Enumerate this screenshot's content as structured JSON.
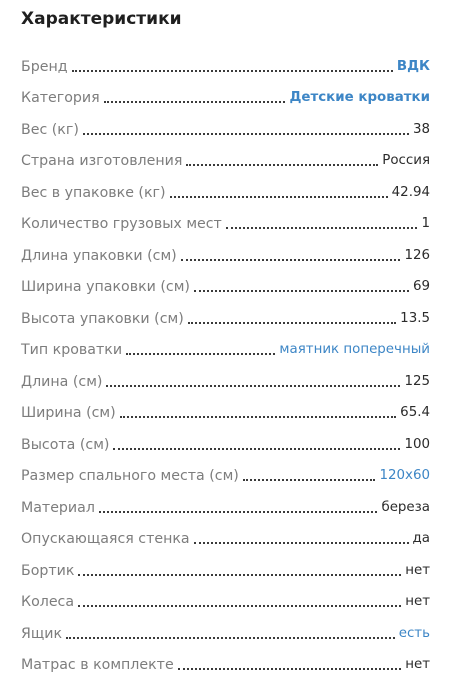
{
  "title": "Характеристики",
  "specs": [
    {
      "label": "Бренд",
      "value": "ВДК",
      "link": true,
      "bold": true
    },
    {
      "label": "Категория",
      "value": "Детские кроватки",
      "link": true,
      "bold": true
    },
    {
      "label": "Вес (кг)",
      "value": "38"
    },
    {
      "label": "Страна изготовления",
      "value": "Россия"
    },
    {
      "label": "Вес в упаковке (кг)",
      "value": "42.94"
    },
    {
      "label": "Количество грузовых мест",
      "value": "1"
    },
    {
      "label": "Длина упаковки (см)",
      "value": "126"
    },
    {
      "label": "Ширина упаковки (см)",
      "value": "69"
    },
    {
      "label": "Высота упаковки (см)",
      "value": "13.5"
    },
    {
      "label": "Тип кроватки",
      "value": "маятник поперечный",
      "link": true
    },
    {
      "label": "Длина (см)",
      "value": "125"
    },
    {
      "label": "Ширина (см)",
      "value": "65.4"
    },
    {
      "label": "Высота (см)",
      "value": "100"
    },
    {
      "label": "Размер спального места (см)",
      "value": "120x60",
      "link": true
    },
    {
      "label": "Материал",
      "value": "береза"
    },
    {
      "label": "Опускающаяся стенка",
      "value": "да"
    },
    {
      "label": "Бортик",
      "value": "нет"
    },
    {
      "label": "Колеса",
      "value": "нет"
    },
    {
      "label": "Ящик",
      "value": "есть",
      "link": true
    },
    {
      "label": "Матрас в комплекте",
      "value": "нет"
    }
  ],
  "colors": {
    "link": "#3d86c6",
    "label": "#7d7d7d",
    "value": "#2b2b2b"
  }
}
